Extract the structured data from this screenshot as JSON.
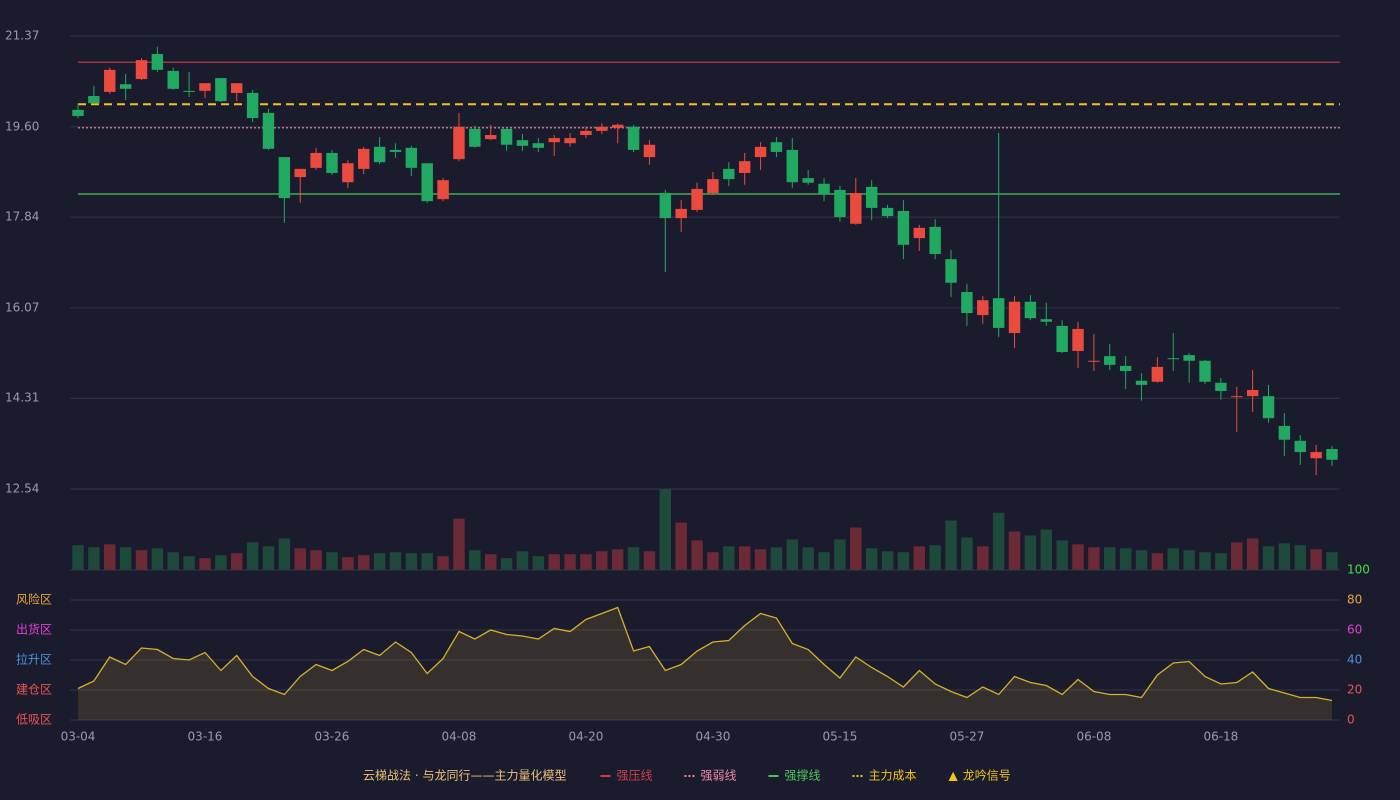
{
  "chart_data": [
    {
      "type": "candlestick",
      "categories": [
        "03-04",
        null,
        null,
        null,
        null,
        null,
        null,
        null,
        "03-16",
        null,
        null,
        null,
        null,
        null,
        null,
        null,
        "03-26",
        null,
        null,
        null,
        null,
        null,
        null,
        null,
        "04-08",
        null,
        null,
        null,
        null,
        null,
        null,
        null,
        "04-20",
        null,
        null,
        null,
        null,
        null,
        null,
        null,
        "04-30",
        null,
        null,
        null,
        null,
        null,
        null,
        null,
        "05-15",
        null,
        null,
        null,
        null,
        null,
        null,
        null,
        "05-27",
        null,
        null,
        null,
        null,
        null,
        null,
        null,
        "06-08",
        null,
        null,
        null,
        null,
        null,
        null,
        null,
        "06-18",
        null,
        null,
        null,
        null,
        null,
        null,
        null
      ],
      "open": [
        19.93,
        20.2,
        20.28,
        20.43,
        20.53,
        21.02,
        20.69,
        20.3,
        20.3,
        20.55,
        20.26,
        20.26,
        19.87,
        19.01,
        18.62,
        18.8,
        19.09,
        18.52,
        18.78,
        19.21,
        19.15,
        19.19,
        18.89,
        18.19,
        18.97,
        19.56,
        19.36,
        19.56,
        19.34,
        19.28,
        19.3,
        19.28,
        19.44,
        19.52,
        19.58,
        19.6,
        19.01,
        18.31,
        17.82,
        17.98,
        18.31,
        18.78,
        18.7,
        19.01,
        19.3,
        19.15,
        18.6,
        18.49,
        18.37,
        17.71,
        18.43,
        18.02,
        17.96,
        17.43,
        17.65,
        17.02,
        16.38,
        15.93,
        16.26,
        15.58,
        16.19,
        15.85,
        15.72,
        15.23,
        15.02,
        15.13,
        14.94,
        14.65,
        14.63,
        15.09,
        15.15,
        15.04,
        14.61,
        14.33,
        14.35,
        14.35,
        13.77,
        13.48,
        13.14,
        13.32
      ],
      "high": [
        20.06,
        20.4,
        20.75,
        20.63,
        20.94,
        21.16,
        20.75,
        20.67,
        20.45,
        20.55,
        20.45,
        20.32,
        19.95,
        19.01,
        18.78,
        19.19,
        19.15,
        18.95,
        19.21,
        19.4,
        19.28,
        19.23,
        18.89,
        18.6,
        19.87,
        19.62,
        19.64,
        19.56,
        19.46,
        19.38,
        19.44,
        19.48,
        19.6,
        19.67,
        19.66,
        19.64,
        19.34,
        18.37,
        18.17,
        18.51,
        18.72,
        18.91,
        19.09,
        19.3,
        19.4,
        19.38,
        18.76,
        18.6,
        18.45,
        18.6,
        18.56,
        18.08,
        18.17,
        17.69,
        17.8,
        17.2,
        16.54,
        16.3,
        19.48,
        16.3,
        16.32,
        16.17,
        15.83,
        15.8,
        15.56,
        15.37,
        15.13,
        14.8,
        15.11,
        15.58,
        15.19,
        15.06,
        14.7,
        14.53,
        14.86,
        14.57,
        14.02,
        13.59,
        13.4,
        13.38
      ],
      "low": [
        19.77,
        20.05,
        20.24,
        20.12,
        20.51,
        20.67,
        20.32,
        20.18,
        20.16,
        20.08,
        20.1,
        19.69,
        19.15,
        17.73,
        18.12,
        18.76,
        18.66,
        18.41,
        18.68,
        18.87,
        18.99,
        18.64,
        18.12,
        18.15,
        18.93,
        19.19,
        19.34,
        19.13,
        19.13,
        19.11,
        19.03,
        19.21,
        19.38,
        19.46,
        19.28,
        19.11,
        18.86,
        16.77,
        17.55,
        17.94,
        18.27,
        18.45,
        18.47,
        18.76,
        19.01,
        18.41,
        18.47,
        18.15,
        17.75,
        17.69,
        17.78,
        17.82,
        17.02,
        17.18,
        17.02,
        16.28,
        15.72,
        15.76,
        15.5,
        15.29,
        15.83,
        15.72,
        15.19,
        14.9,
        14.84,
        14.86,
        14.49,
        14.26,
        14.61,
        14.84,
        14.61,
        14.59,
        14.28,
        13.65,
        14.04,
        13.83,
        13.18,
        13.01,
        12.81,
        12.99
      ],
      "close": [
        19.81,
        20.06,
        20.71,
        20.34,
        20.9,
        20.71,
        20.34,
        20.28,
        20.45,
        20.1,
        20.45,
        19.77,
        19.17,
        18.21,
        18.78,
        19.09,
        18.7,
        18.89,
        19.17,
        18.91,
        19.11,
        18.8,
        18.15,
        18.56,
        19.6,
        19.21,
        19.44,
        19.25,
        19.23,
        19.19,
        19.38,
        19.38,
        19.52,
        19.6,
        19.64,
        19.15,
        19.25,
        17.82,
        18.0,
        18.39,
        18.58,
        18.58,
        18.93,
        19.21,
        19.11,
        18.52,
        18.51,
        18.29,
        17.84,
        18.31,
        18.02,
        17.86,
        17.3,
        17.63,
        17.12,
        16.56,
        15.97,
        16.22,
        15.68,
        16.19,
        15.87,
        15.8,
        15.21,
        15.66,
        15.04,
        14.96,
        14.84,
        14.57,
        14.92,
        15.07,
        15.04,
        14.63,
        14.45,
        14.35,
        14.47,
        13.92,
        13.5,
        13.26,
        13.26,
        13.11
      ],
      "up_color": "#eb4a3f",
      "down_color": "#21a861",
      "ylim": [
        12.54,
        21.37
      ],
      "yticks": [
        12.54,
        14.31,
        16.07,
        17.84,
        {
          "value": 19.6,
          "label": "19.60"
        },
        21.37
      ],
      "grid": true,
      "levels": [
        {
          "name": "强压线",
          "value": 20.86,
          "color": "#c8404a",
          "style": "solid"
        },
        {
          "name": "强弱线",
          "value": 19.58,
          "color": "#f08aa0",
          "style": "dotted"
        },
        {
          "name": "强撑线",
          "value": 18.29,
          "color": "#4cc35a",
          "style": "solid"
        },
        {
          "name": "主力成本",
          "value": 20.04,
          "color": "#f0c419",
          "style": "dashed"
        }
      ],
      "signal": {
        "name": "龙吟信号",
        "symbol": "▲",
        "color": "#f0c419"
      },
      "legend_title": "云梯战法 · 与龙同行——主力量化模型"
    },
    {
      "type": "bar",
      "values": [
        25,
        23,
        26,
        23,
        20,
        22,
        18,
        14,
        12,
        15,
        17,
        28,
        24,
        32,
        22,
        20,
        18,
        13,
        15,
        17,
        18,
        17,
        17,
        14,
        52,
        20,
        16,
        12,
        19,
        14,
        16,
        16,
        16,
        19,
        21,
        23,
        19,
        82,
        48,
        30,
        18,
        24,
        24,
        21,
        23,
        31,
        23,
        18,
        31,
        43,
        22,
        19,
        18,
        24,
        25,
        50,
        33,
        24,
        58,
        39,
        35,
        41,
        30,
        26,
        23,
        23,
        22,
        20,
        17,
        22,
        20,
        18,
        17,
        28,
        32,
        24,
        27,
        25,
        21,
        18
      ],
      "up_color": "#6b2a35",
      "down_color": "#1d4a3b"
    },
    {
      "type": "area",
      "values": [
        21,
        26,
        42,
        37,
        48,
        47,
        41,
        40,
        45,
        33,
        43,
        29,
        21,
        17,
        29,
        37,
        33,
        39,
        47,
        43,
        52,
        45,
        31,
        41,
        59,
        54,
        60,
        57,
        56,
        54,
        61,
        59,
        67,
        71,
        75,
        46,
        49,
        33,
        37,
        46,
        52,
        53,
        63,
        71,
        68,
        51,
        47,
        37,
        28,
        42,
        35,
        29,
        22,
        33,
        24,
        19,
        15,
        22,
        17,
        29,
        25,
        23,
        17,
        27,
        19,
        17,
        17,
        15,
        30,
        38,
        39,
        29,
        24,
        25,
        32,
        21,
        18,
        15,
        15,
        13
      ],
      "color": "#d4b12a",
      "ylim": [
        0,
        100
      ],
      "yticks": [
        0,
        20,
        40,
        60,
        80,
        100
      ],
      "ytick_colors": [
        "#e8554e",
        "#e8554e",
        "#4a90e2",
        "#e040d8",
        "#e8a33d",
        "#3ee04a"
      ],
      "zones": [
        {
          "label": "风险区",
          "value": 80,
          "color": "#e8a33d"
        },
        {
          "label": "出货区",
          "value": 60,
          "color": "#e040d8"
        },
        {
          "label": "拉升区",
          "value": 40,
          "color": "#4a90e2"
        },
        {
          "label": "建仓区",
          "value": 20,
          "color": "#e8554e"
        },
        {
          "label": "低吸区",
          "value": 0,
          "color": "#e8554e"
        }
      ],
      "grid": true
    }
  ]
}
